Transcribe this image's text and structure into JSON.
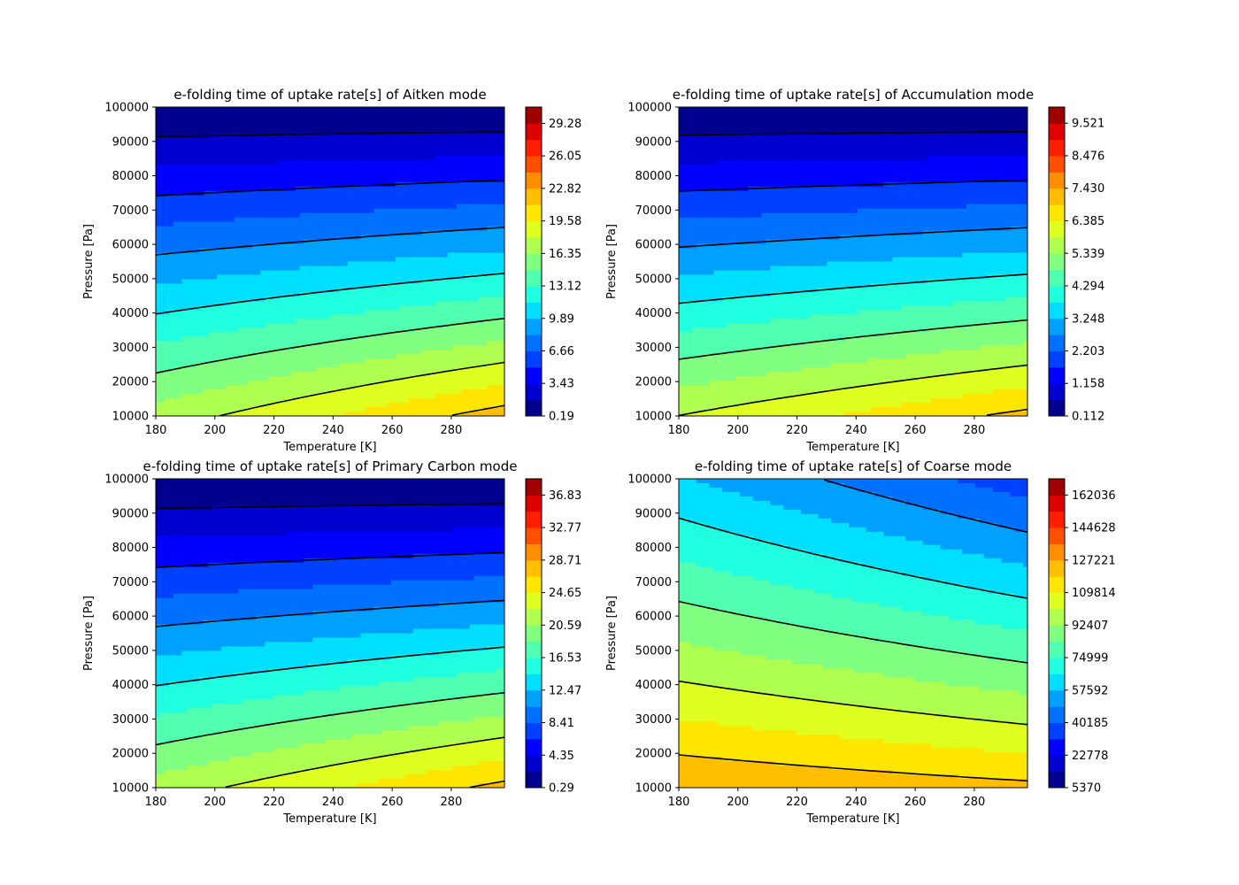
{
  "chart_data": [
    {
      "type": "contour",
      "title": "e-folding time of uptake rate[s] of Aitken mode",
      "xlabel": "Temperature [K]",
      "ylabel": "Pressure [Pa]",
      "xlim": [
        180,
        298
      ],
      "ylim": [
        10000,
        100000
      ],
      "xticks": [
        "180",
        "200",
        "220",
        "240",
        "260",
        "280"
      ],
      "yticks": [
        "10000",
        "20000",
        "30000",
        "40000",
        "50000",
        "60000",
        "70000",
        "80000",
        "90000",
        "100000"
      ],
      "colorbar_ticks": [
        "0.19",
        "3.43",
        "6.66",
        "9.89",
        "13.12",
        "16.35",
        "19.58",
        "22.82",
        "26.05",
        "29.28"
      ],
      "colorbar_range": [
        0.19,
        30.9
      ],
      "field_range_at_corners": {
        "top_left": 0.19,
        "bottom_left": 16.9,
        "bottom_right": 21.2
      },
      "contour_style": "sloped"
    },
    {
      "type": "contour",
      "title": "e-folding time of uptake rate[s] of Accumulation mode",
      "xlabel": "Temperature [K]",
      "ylabel": "Pressure [Pa]",
      "xlim": [
        180,
        298
      ],
      "ylim": [
        10000,
        100000
      ],
      "xticks": [
        "180",
        "200",
        "220",
        "240",
        "260",
        "280"
      ],
      "yticks": [
        "10000",
        "20000",
        "30000",
        "40000",
        "50000",
        "60000",
        "70000",
        "80000",
        "90000",
        "100000"
      ],
      "colorbar_ticks": [
        "0.112",
        "1.158",
        "2.203",
        "3.248",
        "4.294",
        "5.339",
        "6.385",
        "7.430",
        "8.476",
        "9.521"
      ],
      "colorbar_range": [
        0.112,
        10.04
      ],
      "field_range_at_corners": {
        "top_left": 0.6,
        "bottom_left": 5.9,
        "bottom_right": 7.1
      },
      "contour_style": "sloped"
    },
    {
      "type": "contour",
      "title": "e-folding time of uptake rate[s] of Primary Carbon mode",
      "xlabel": "Temperature [K]",
      "ylabel": "Pressure [Pa]",
      "xlim": [
        180,
        298
      ],
      "ylim": [
        10000,
        100000
      ],
      "xticks": [
        "180",
        "200",
        "220",
        "240",
        "260",
        "280"
      ],
      "yticks": [
        "10000",
        "20000",
        "30000",
        "40000",
        "50000",
        "60000",
        "70000",
        "80000",
        "90000",
        "100000"
      ],
      "colorbar_ticks": [
        "0.29",
        "4.35",
        "8.41",
        "12.47",
        "16.53",
        "20.59",
        "24.65",
        "28.71",
        "32.77",
        "36.83"
      ],
      "colorbar_range": [
        0.29,
        38.86
      ],
      "field_range_at_corners": {
        "top_left": 0.5,
        "bottom_left": 21.5,
        "bottom_right": 27.0
      },
      "contour_style": "sloped"
    },
    {
      "type": "contour",
      "title": "e-folding time of uptake rate[s] of Coarse mode",
      "xlabel": "Temperature [K]",
      "ylabel": "Pressure [Pa]",
      "xlim": [
        180,
        298
      ],
      "ylim": [
        10000,
        100000
      ],
      "xticks": [
        "180",
        "200",
        "220",
        "240",
        "260",
        "280"
      ],
      "yticks": [
        "10000",
        "20000",
        "30000",
        "40000",
        "50000",
        "60000",
        "70000",
        "80000",
        "90000",
        "100000"
      ],
      "colorbar_ticks": [
        "5370",
        "22778",
        "40185",
        "57592",
        "74999",
        "92407",
        "109814",
        "127221",
        "144628",
        "162036"
      ],
      "colorbar_range": [
        5370,
        170740
      ],
      "field_range_at_corners": {
        "top_left": 76000,
        "bottom_left": 128000,
        "top_right": 55000,
        "bottom_right": 113000
      },
      "contour_style": "curved"
    }
  ],
  "colors": {
    "levels": [
      "#00008f",
      "#0000cf",
      "#0000ff",
      "#0040ff",
      "#0070ff",
      "#00a0ff",
      "#00dfff",
      "#20ffdf",
      "#50ffaf",
      "#80ff80",
      "#afff50",
      "#dfff20",
      "#ffe600",
      "#ffbf00",
      "#ff8f00",
      "#ff5000",
      "#ff1f00",
      "#df0000",
      "#9f0000"
    ]
  }
}
